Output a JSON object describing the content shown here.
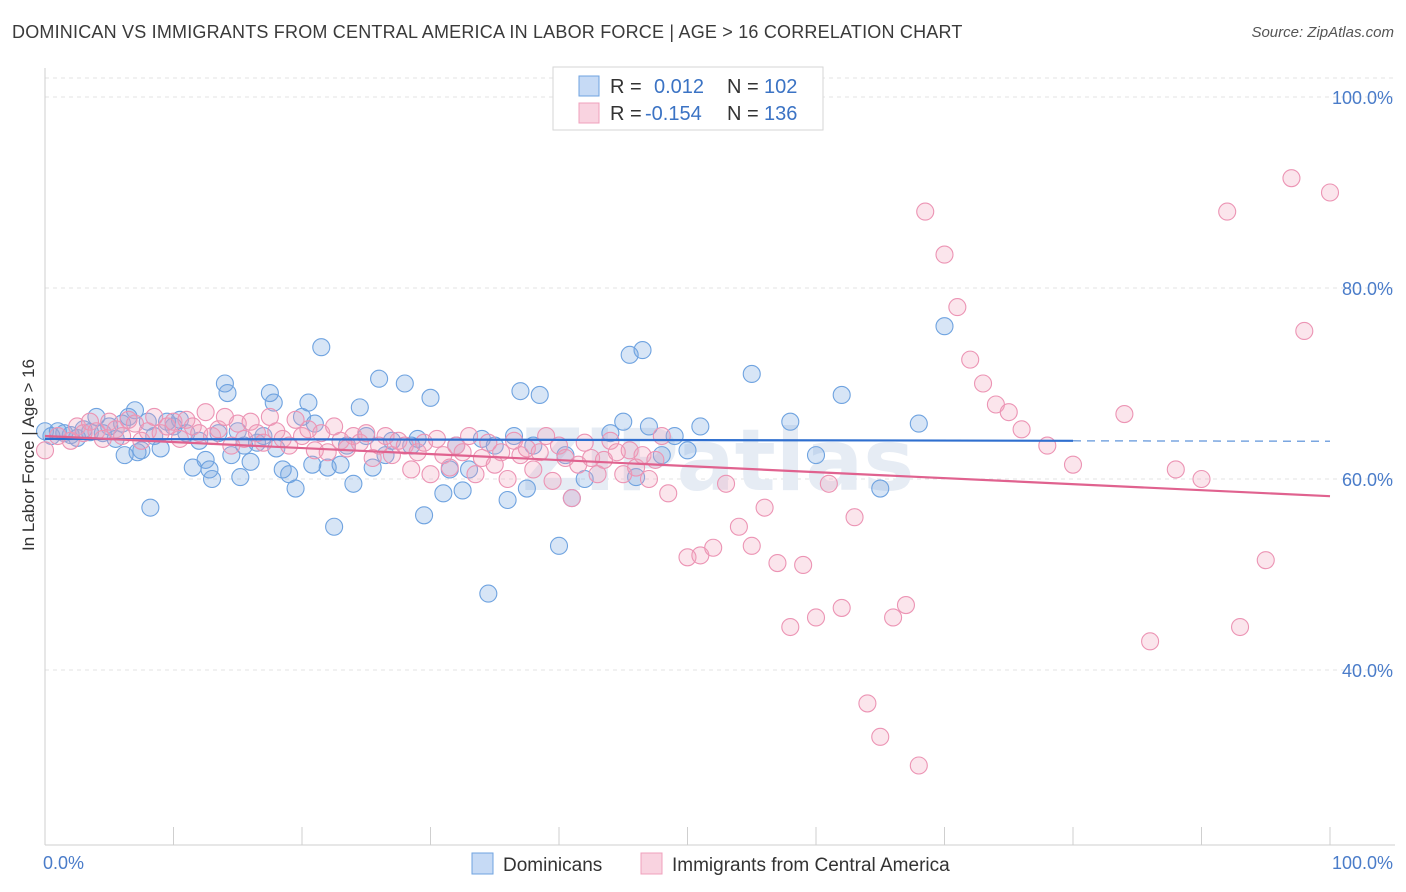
{
  "title": "DOMINICAN VS IMMIGRANTS FROM CENTRAL AMERICA IN LABOR FORCE | AGE > 16 CORRELATION CHART",
  "source": "Source: ZipAtlas.com",
  "watermark": "ZIPatlas",
  "legend": {
    "rows": [
      {
        "r_label": "R =",
        "r_value": "0.012",
        "n_label": "N =",
        "n_value": "102",
        "color": "#6fa3e0"
      },
      {
        "r_label": "R =",
        "r_value": "-0.154",
        "n_label": "N =",
        "n_value": "136",
        "color": "#f0a0bc"
      }
    ]
  },
  "chart_data": {
    "type": "scatter",
    "title": "DOMINICAN VS IMMIGRANTS FROM CENTRAL AMERICA IN LABOR FORCE | AGE > 16 CORRELATION CHART",
    "xlabel": "",
    "ylabel": "In Labor Force | Age > 16",
    "xlim": [
      0,
      100
    ],
    "ylim": [
      22,
      102
    ],
    "x_tick_labels": [
      "0.0%",
      "100.0%"
    ],
    "y_ticks": [
      40,
      60,
      80,
      100
    ],
    "y_tick_labels": [
      "40.0%",
      "60.0%",
      "80.0%",
      "100.0%"
    ],
    "grid": true,
    "legend_position": "top-center",
    "series": [
      {
        "name": "Dominicans",
        "color": "#6fa3e0",
        "trend": {
          "x": [
            0,
            80
          ],
          "y": [
            64.2,
            64.0
          ],
          "dashed_to": 100
        },
        "points": [
          [
            0,
            65
          ],
          [
            0.5,
            64.5
          ],
          [
            1,
            65
          ],
          [
            1.5,
            64.8
          ],
          [
            2,
            64.6
          ],
          [
            2.5,
            64.3
          ],
          [
            3,
            65.2
          ],
          [
            3.5,
            64.9
          ],
          [
            4,
            66.5
          ],
          [
            4.5,
            64.8
          ],
          [
            5,
            65.5
          ],
          [
            5.5,
            64.2
          ],
          [
            6,
            65.8
          ],
          [
            6.2,
            62.5
          ],
          [
            6.5,
            66.5
          ],
          [
            7,
            67.2
          ],
          [
            7.2,
            62.8
          ],
          [
            7.5,
            63
          ],
          [
            8,
            66
          ],
          [
            8.2,
            57
          ],
          [
            8.5,
            64.5
          ],
          [
            9,
            63.2
          ],
          [
            9.5,
            66
          ],
          [
            10,
            65.5
          ],
          [
            10.5,
            66.2
          ],
          [
            11,
            64.8
          ],
          [
            11.5,
            61.2
          ],
          [
            12,
            64
          ],
          [
            12.5,
            62
          ],
          [
            12.8,
            61
          ],
          [
            13,
            60
          ],
          [
            13.5,
            64.8
          ],
          [
            14,
            70
          ],
          [
            14.2,
            69
          ],
          [
            14.5,
            62.5
          ],
          [
            15,
            65
          ],
          [
            15.2,
            60.2
          ],
          [
            15.5,
            63.5
          ],
          [
            16,
            61.8
          ],
          [
            16.5,
            63.8
          ],
          [
            17,
            64.5
          ],
          [
            17.5,
            69
          ],
          [
            17.8,
            68
          ],
          [
            18,
            63.2
          ],
          [
            18.5,
            61
          ],
          [
            19,
            60.5
          ],
          [
            19.5,
            59
          ],
          [
            20,
            66.5
          ],
          [
            20.5,
            68
          ],
          [
            20.8,
            61.5
          ],
          [
            21,
            65.8
          ],
          [
            21.5,
            73.8
          ],
          [
            22,
            61.2
          ],
          [
            22.5,
            55
          ],
          [
            23,
            61.5
          ],
          [
            23.5,
            63.5
          ],
          [
            24,
            59.5
          ],
          [
            24.5,
            67.5
          ],
          [
            25,
            64.5
          ],
          [
            25.5,
            61.2
          ],
          [
            26,
            70.5
          ],
          [
            26.5,
            62.5
          ],
          [
            27,
            64
          ],
          [
            28,
            70
          ],
          [
            28.5,
            63.5
          ],
          [
            29,
            64.2
          ],
          [
            29.5,
            56.2
          ],
          [
            30,
            68.5
          ],
          [
            31,
            58.5
          ],
          [
            31.5,
            61
          ],
          [
            32,
            63.5
          ],
          [
            32.5,
            58.8
          ],
          [
            33,
            61
          ],
          [
            34,
            64.2
          ],
          [
            34.5,
            48
          ],
          [
            35,
            63.5
          ],
          [
            36,
            57.8
          ],
          [
            36.5,
            64.5
          ],
          [
            37,
            69.2
          ],
          [
            37.5,
            59
          ],
          [
            38,
            63.5
          ],
          [
            38.5,
            68.8
          ],
          [
            40,
            53
          ],
          [
            40.5,
            62.5
          ],
          [
            41,
            58
          ],
          [
            42,
            60
          ],
          [
            44,
            64.8
          ],
          [
            45,
            66
          ],
          [
            45.5,
            73
          ],
          [
            46,
            60.2
          ],
          [
            46.5,
            73.5
          ],
          [
            47,
            65.5
          ],
          [
            48,
            62.5
          ],
          [
            49,
            64.5
          ],
          [
            50,
            63
          ],
          [
            51,
            65.5
          ],
          [
            55,
            71
          ],
          [
            58,
            66
          ],
          [
            60,
            62.5
          ],
          [
            62,
            68.8
          ],
          [
            65,
            59
          ],
          [
            68,
            65.8
          ],
          [
            70,
            76
          ]
        ]
      },
      {
        "name": "Immigrants from Central America",
        "color": "#f0a0bc",
        "trend": {
          "x": [
            0,
            100
          ],
          "y": [
            64.5,
            58.2
          ]
        },
        "points": [
          [
            0,
            63
          ],
          [
            1,
            64.5
          ],
          [
            2,
            64
          ],
          [
            2.5,
            65.5
          ],
          [
            3,
            64.8
          ],
          [
            3.5,
            66
          ],
          [
            4,
            65
          ],
          [
            4.5,
            64.2
          ],
          [
            5,
            66
          ],
          [
            5.5,
            65.2
          ],
          [
            6,
            64.5
          ],
          [
            6.5,
            66.2
          ],
          [
            7,
            65.8
          ],
          [
            7.5,
            64
          ],
          [
            8,
            65
          ],
          [
            8.5,
            66.5
          ],
          [
            9,
            64.8
          ],
          [
            9.5,
            65.5
          ],
          [
            10,
            66
          ],
          [
            10.5,
            64.2
          ],
          [
            11,
            66.2
          ],
          [
            11.5,
            65.5
          ],
          [
            12,
            64.8
          ],
          [
            12.5,
            67
          ],
          [
            13,
            64.5
          ],
          [
            13.5,
            65.2
          ],
          [
            14,
            66.5
          ],
          [
            14.5,
            63.5
          ],
          [
            15,
            65.8
          ],
          [
            15.5,
            64.2
          ],
          [
            16,
            66
          ],
          [
            16.5,
            64.8
          ],
          [
            17,
            63.8
          ],
          [
            17.5,
            66.5
          ],
          [
            18,
            65
          ],
          [
            18.5,
            64.2
          ],
          [
            19,
            63.5
          ],
          [
            19.5,
            66.2
          ],
          [
            20,
            64.5
          ],
          [
            20.5,
            65.2
          ],
          [
            21,
            63
          ],
          [
            21.5,
            64.8
          ],
          [
            22,
            62.8
          ],
          [
            22.5,
            65.5
          ],
          [
            23,
            64
          ],
          [
            23.5,
            63.2
          ],
          [
            24,
            64.5
          ],
          [
            24.5,
            63.8
          ],
          [
            25,
            64.8
          ],
          [
            25.5,
            62.2
          ],
          [
            26,
            63.5
          ],
          [
            26.5,
            64.5
          ],
          [
            27,
            62.5
          ],
          [
            27.5,
            64
          ],
          [
            28,
            63.5
          ],
          [
            28.5,
            61
          ],
          [
            29,
            62.8
          ],
          [
            29.5,
            63.8
          ],
          [
            30,
            60.5
          ],
          [
            30.5,
            64.2
          ],
          [
            31,
            62.5
          ],
          [
            31.5,
            61.2
          ],
          [
            32,
            63.5
          ],
          [
            32.5,
            62.8
          ],
          [
            33,
            64.5
          ],
          [
            33.5,
            60.5
          ],
          [
            34,
            62.2
          ],
          [
            34.5,
            63.8
          ],
          [
            35,
            61.5
          ],
          [
            35.5,
            62.8
          ],
          [
            36,
            60
          ],
          [
            36.5,
            64
          ],
          [
            37,
            62.5
          ],
          [
            37.5,
            63.2
          ],
          [
            38,
            61
          ],
          [
            38.5,
            62.8
          ],
          [
            39,
            64.5
          ],
          [
            39.5,
            59.8
          ],
          [
            40,
            63.5
          ],
          [
            40.5,
            62.2
          ],
          [
            41,
            58
          ],
          [
            41.5,
            61.5
          ],
          [
            42,
            63.8
          ],
          [
            42.5,
            62.2
          ],
          [
            43,
            60.5
          ],
          [
            43.5,
            62
          ],
          [
            44,
            64
          ],
          [
            44.5,
            62.8
          ],
          [
            45,
            60.5
          ],
          [
            45.5,
            63
          ],
          [
            46,
            61.2
          ],
          [
            46.5,
            62.5
          ],
          [
            47,
            60
          ],
          [
            47.5,
            62
          ],
          [
            48,
            64.5
          ],
          [
            48.5,
            58.5
          ],
          [
            50,
            51.8
          ],
          [
            51,
            52
          ],
          [
            52,
            52.8
          ],
          [
            53,
            59.5
          ],
          [
            54,
            55
          ],
          [
            55,
            53
          ],
          [
            56,
            57
          ],
          [
            57,
            51.2
          ],
          [
            58,
            44.5
          ],
          [
            59,
            51
          ],
          [
            60,
            45.5
          ],
          [
            61,
            59.5
          ],
          [
            62,
            46.5
          ],
          [
            63,
            56
          ],
          [
            64,
            36.5
          ],
          [
            65,
            33
          ],
          [
            66,
            45.5
          ],
          [
            67,
            46.8
          ],
          [
            68,
            30
          ],
          [
            68.5,
            88
          ],
          [
            70,
            83.5
          ],
          [
            71,
            78
          ],
          [
            72,
            72.5
          ],
          [
            73,
            70
          ],
          [
            74,
            67.8
          ],
          [
            75,
            67
          ],
          [
            76,
            65.2
          ],
          [
            78,
            63.5
          ],
          [
            80,
            61.5
          ],
          [
            84,
            66.8
          ],
          [
            86,
            43
          ],
          [
            88,
            61
          ],
          [
            90,
            60
          ],
          [
            92,
            88
          ],
          [
            93,
            44.5
          ],
          [
            95,
            51.5
          ],
          [
            97,
            91.5
          ],
          [
            98,
            75.5
          ],
          [
            100,
            90
          ]
        ]
      }
    ]
  },
  "bottom_legend": [
    {
      "label": "Dominicans",
      "color": "#6fa3e0"
    },
    {
      "label": "Immigrants from Central America",
      "color": "#f0a0bc"
    }
  ]
}
